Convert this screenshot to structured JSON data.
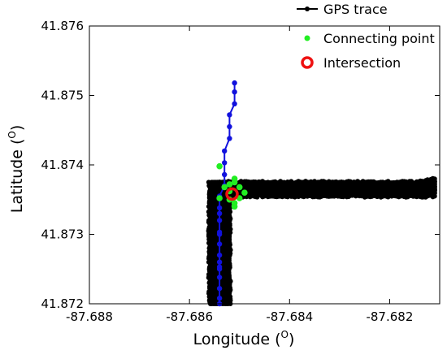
{
  "chart_data": {
    "type": "scatter",
    "xlabel": "Longitude (",
    "xlabel_sup": "O",
    "xlabel_close": ")",
    "ylabel": "Latitude (",
    "ylabel_sup": "O",
    "ylabel_close": ")",
    "xlim": [
      -87.688,
      -87.681
    ],
    "ylim": [
      41.872,
      41.876
    ],
    "xticks": [
      -87.688,
      -87.686,
      -87.684,
      -87.682
    ],
    "yticks": [
      41.872,
      41.873,
      41.874,
      41.875,
      41.876
    ],
    "xtick_labels": [
      "-87.688",
      "-87.686",
      "-87.684",
      "-87.682"
    ],
    "ytick_labels": [
      "41.872",
      "41.873",
      "41.874",
      "41.875",
      "41.876"
    ],
    "legend_position": "top-right",
    "legend": [
      {
        "label": "GPS trace",
        "marker": "line-dot",
        "color": "#000000"
      },
      {
        "label": "Connecting point",
        "marker": "dot",
        "color": "#22ee22"
      },
      {
        "label": "Intersection",
        "marker": "ring",
        "color": "#ee1111"
      }
    ],
    "series": [
      {
        "marker": "line-dot",
        "color": "#000000",
        "band": "horizontal",
        "x_range": [
          -87.6854,
          -87.6811
        ],
        "y_range": [
          41.87355,
          41.87375
        ]
      },
      {
        "marker": "line-dot",
        "color": "#000000",
        "band": "vertical",
        "x_range": [
          -87.6856,
          -87.6852
        ],
        "y_range": [
          41.872,
          41.87375
        ]
      },
      {
        "marker": "line-dot",
        "color": "#1111dd",
        "x": [
          -87.6851,
          -87.6851,
          -87.6851,
          -87.6852,
          -87.6852,
          -87.6852,
          -87.6853,
          -87.6853,
          -87.6853,
          -87.6853,
          -87.6854,
          -87.6854,
          -87.6854,
          -87.6854,
          -87.6854,
          -87.6854,
          -87.6854,
          -87.6854,
          -87.6854,
          -87.6854,
          -87.6854,
          -87.6854,
          -87.6854,
          -87.6854,
          -87.6854
        ],
        "y": [
          41.87518,
          41.87505,
          41.87488,
          41.87472,
          41.87455,
          41.87438,
          41.8742,
          41.87403,
          41.87386,
          41.8737,
          41.87355,
          41.87338,
          41.8732,
          41.87303,
          41.87286,
          41.8727,
          41.87253,
          41.87238,
          41.87222,
          41.87208,
          41.872,
          41.8725,
          41.8726,
          41.8733,
          41.873
        ]
      },
      {
        "marker": "dot",
        "color": "#22ee22",
        "x": [
          -87.6854,
          -87.6854,
          -87.6853,
          -87.6852,
          -87.6851,
          -87.685,
          -87.6849,
          -87.6852,
          -87.6851,
          -87.685,
          -87.6851,
          -87.6852,
          -87.6851
        ],
        "y": [
          41.87398,
          41.87352,
          41.87368,
          41.87372,
          41.87375,
          41.87368,
          41.8736,
          41.8735,
          41.87345,
          41.87352,
          41.8734,
          41.87362,
          41.8738
        ]
      },
      {
        "marker": "ring",
        "color": "#ee1111",
        "x": [
          -87.68515
        ],
        "y": [
          41.87358
        ]
      }
    ]
  }
}
